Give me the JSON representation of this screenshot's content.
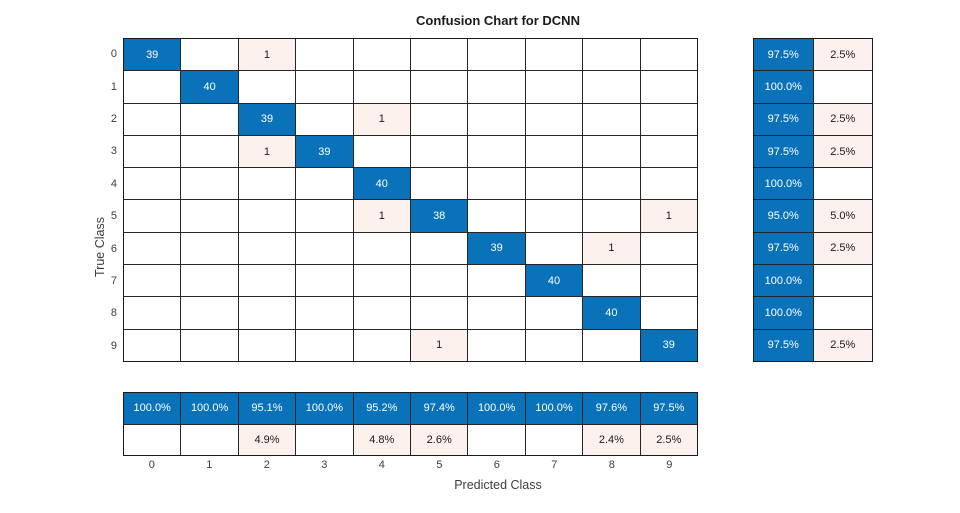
{
  "title": "Confusion Chart for DCNN",
  "axes": {
    "x_label": "Predicted Class",
    "y_label": "True Class"
  },
  "classes": [
    "0",
    "1",
    "2",
    "3",
    "4",
    "5",
    "6",
    "7",
    "8",
    "9"
  ],
  "colors": {
    "diagonal_blue": "#0a72b9",
    "off_diagonal_pink": "#fcf1ec",
    "grid_line": "#262626",
    "text_on_blue": "#ffffff",
    "text_dark": "#1a1a1a",
    "tick_text": "#3d3d3d",
    "background": "#ffffff"
  },
  "chart_data": {
    "type": "heatmap",
    "subtype": "confusion-matrix",
    "title": "Confusion Chart for DCNN",
    "xlabel": "Predicted Class",
    "ylabel": "True Class",
    "categories": [
      "0",
      "1",
      "2",
      "3",
      "4",
      "5",
      "6",
      "7",
      "8",
      "9"
    ],
    "matrix": [
      [
        39,
        0,
        1,
        0,
        0,
        0,
        0,
        0,
        0,
        0
      ],
      [
        0,
        40,
        0,
        0,
        0,
        0,
        0,
        0,
        0,
        0
      ],
      [
        0,
        0,
        39,
        0,
        1,
        0,
        0,
        0,
        0,
        0
      ],
      [
        0,
        0,
        1,
        39,
        0,
        0,
        0,
        0,
        0,
        0
      ],
      [
        0,
        0,
        0,
        0,
        40,
        0,
        0,
        0,
        0,
        0
      ],
      [
        0,
        0,
        0,
        0,
        1,
        38,
        0,
        0,
        0,
        1
      ],
      [
        0,
        0,
        0,
        0,
        0,
        0,
        39,
        0,
        1,
        0
      ],
      [
        0,
        0,
        0,
        0,
        0,
        0,
        0,
        40,
        0,
        0
      ],
      [
        0,
        0,
        0,
        0,
        0,
        0,
        0,
        0,
        40,
        0
      ],
      [
        0,
        0,
        0,
        0,
        0,
        1,
        0,
        0,
        0,
        39
      ]
    ],
    "row_summary": {
      "correct": [
        "97.5%",
        "100.0%",
        "97.5%",
        "97.5%",
        "100.0%",
        "95.0%",
        "97.5%",
        "100.0%",
        "100.0%",
        "97.5%"
      ],
      "incorrect": [
        "2.5%",
        "",
        "2.5%",
        "2.5%",
        "",
        "5.0%",
        "2.5%",
        "",
        "",
        "2.5%"
      ]
    },
    "col_summary": {
      "correct": [
        "100.0%",
        "100.0%",
        "95.1%",
        "100.0%",
        "95.2%",
        "97.4%",
        "100.0%",
        "100.0%",
        "97.6%",
        "97.5%"
      ],
      "incorrect": [
        "",
        "",
        "4.9%",
        "",
        "4.8%",
        "2.6%",
        "",
        "",
        "2.4%",
        "2.5%"
      ]
    },
    "legend_position": "none",
    "grid": true
  }
}
